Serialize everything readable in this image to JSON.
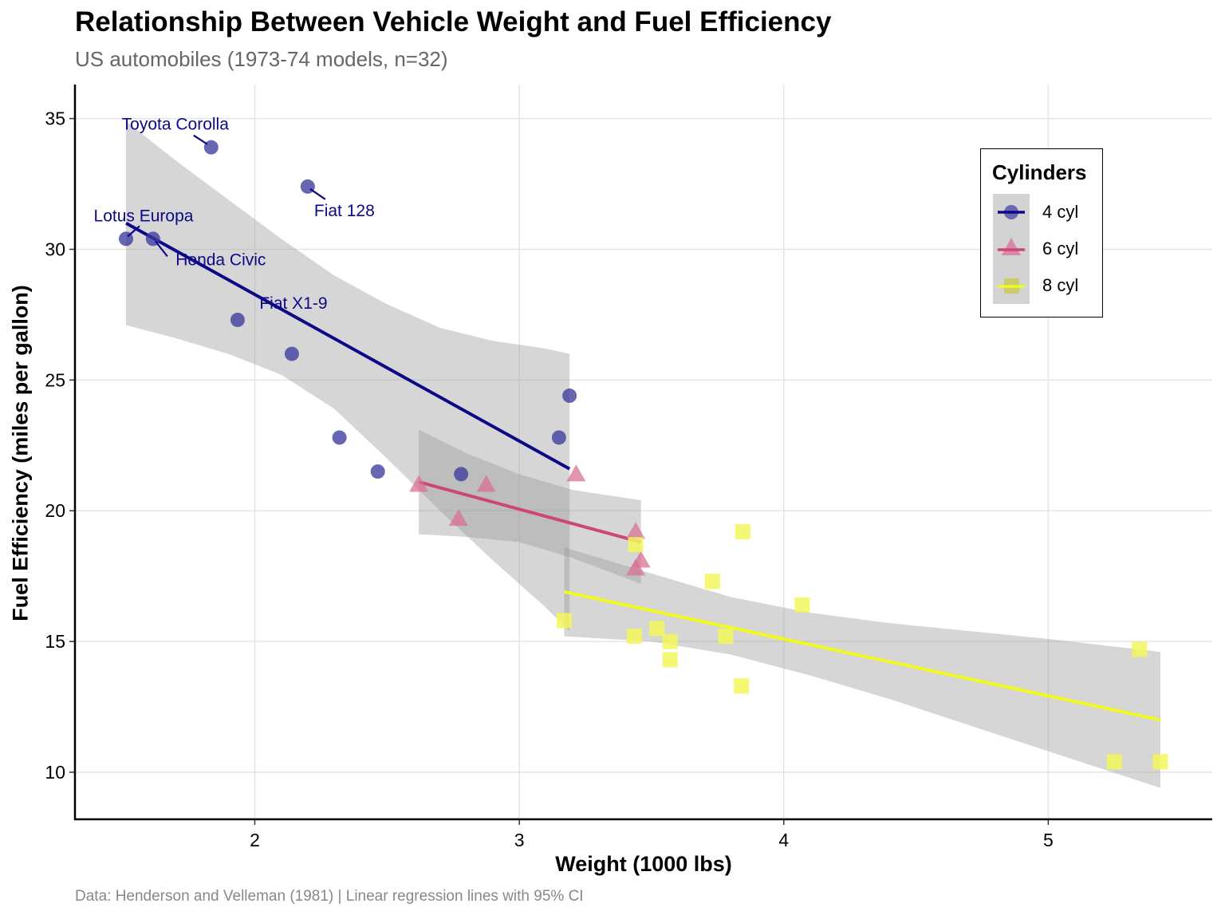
{
  "chart_data": {
    "type": "scatter",
    "title": "Relationship Between Vehicle Weight and Fuel Efficiency",
    "subtitle": "US automobiles (1973-74 models, n=32)",
    "caption": "Data: Henderson and Velleman (1981) | Linear regression lines with 95% CI",
    "xlabel": "Weight (1000 lbs)",
    "ylabel": "Fuel Efficiency (miles per gallon)",
    "xlim": [
      1.32,
      5.62
    ],
    "ylim": [
      8.2,
      36.3
    ],
    "x_ticks": [
      2,
      3,
      4,
      5
    ],
    "y_ticks": [
      10,
      15,
      20,
      25,
      30,
      35
    ],
    "grid": true,
    "legend": {
      "title": "Cylinders",
      "position": "top-right",
      "entries": [
        "4 cyl",
        "6 cyl",
        "8 cyl"
      ]
    },
    "series": [
      {
        "name": "4 cyl",
        "marker": "circle",
        "color": "#0d0887",
        "point_color": "#3b3b9e",
        "points": [
          {
            "x": 2.32,
            "y": 22.8
          },
          {
            "x": 3.19,
            "y": 24.4
          },
          {
            "x": 3.15,
            "y": 22.8
          },
          {
            "x": 2.2,
            "y": 32.4
          },
          {
            "x": 1.615,
            "y": 30.4
          },
          {
            "x": 1.835,
            "y": 33.9
          },
          {
            "x": 2.465,
            "y": 21.5
          },
          {
            "x": 1.935,
            "y": 27.3
          },
          {
            "x": 2.14,
            "y": 26.0
          },
          {
            "x": 1.513,
            "y": 30.4
          },
          {
            "x": 2.78,
            "y": 21.4
          }
        ],
        "fit": {
          "x": [
            1.513,
            3.19
          ],
          "y": [
            31.0,
            21.6
          ]
        },
        "ci": {
          "x": [
            1.513,
            1.7,
            1.9,
            2.1,
            2.3,
            2.5,
            2.7,
            2.9,
            3.1,
            3.19
          ],
          "upper": [
            34.9,
            33.4,
            31.9,
            30.4,
            29.0,
            27.9,
            27.0,
            26.5,
            26.2,
            26.0
          ],
          "lower": [
            27.1,
            26.6,
            26.0,
            25.2,
            23.9,
            22.0,
            20.0,
            18.1,
            16.3,
            15.4
          ]
        },
        "labels": [
          {
            "text": "Toyota Corolla",
            "x": 1.835,
            "y": 33.9
          },
          {
            "text": "Fiat 128",
            "x": 2.2,
            "y": 32.4
          },
          {
            "text": "Lotus Europa",
            "x": 1.513,
            "y": 30.4
          },
          {
            "text": "Honda Civic",
            "x": 1.615,
            "y": 30.4
          },
          {
            "text": "Fiat X1-9",
            "x": 1.935,
            "y": 27.3
          }
        ]
      },
      {
        "name": "6 cyl",
        "marker": "triangle",
        "color": "#cc4778",
        "point_color": "#d87096",
        "points": [
          {
            "x": 2.62,
            "y": 21.0
          },
          {
            "x": 2.875,
            "y": 21.0
          },
          {
            "x": 3.215,
            "y": 21.4
          },
          {
            "x": 3.46,
            "y": 18.1
          },
          {
            "x": 3.44,
            "y": 19.2
          },
          {
            "x": 3.44,
            "y": 17.8
          },
          {
            "x": 2.77,
            "y": 19.7
          }
        ],
        "fit": {
          "x": [
            2.62,
            3.46
          ],
          "y": [
            21.1,
            18.8
          ]
        },
        "ci": {
          "x": [
            2.62,
            2.8,
            3.0,
            3.2,
            3.46
          ],
          "upper": [
            23.1,
            22.2,
            21.4,
            20.8,
            20.4
          ],
          "lower": [
            19.1,
            19.0,
            18.8,
            18.2,
            17.2
          ]
        }
      },
      {
        "name": "8 cyl",
        "marker": "square",
        "color": "#f0f921",
        "point_color": "#f2f75a",
        "points": [
          {
            "x": 3.44,
            "y": 18.7
          },
          {
            "x": 3.57,
            "y": 14.3
          },
          {
            "x": 4.07,
            "y": 16.4
          },
          {
            "x": 3.73,
            "y": 17.3
          },
          {
            "x": 3.78,
            "y": 15.2
          },
          {
            "x": 5.25,
            "y": 10.4
          },
          {
            "x": 5.424,
            "y": 10.4
          },
          {
            "x": 5.345,
            "y": 14.7
          },
          {
            "x": 3.52,
            "y": 15.5
          },
          {
            "x": 3.435,
            "y": 15.2
          },
          {
            "x": 3.84,
            "y": 13.3
          },
          {
            "x": 3.845,
            "y": 19.2
          },
          {
            "x": 3.17,
            "y": 15.8
          },
          {
            "x": 3.57,
            "y": 15.0
          }
        ],
        "fit": {
          "x": [
            3.17,
            5.424
          ],
          "y": [
            16.9,
            12.0
          ]
        },
        "ci": {
          "x": [
            3.17,
            3.5,
            3.8,
            4.1,
            4.4,
            4.7,
            5.0,
            5.424
          ],
          "upper": [
            18.6,
            17.6,
            16.7,
            16.1,
            15.7,
            15.4,
            15.1,
            14.6
          ],
          "lower": [
            15.2,
            15.0,
            14.5,
            13.7,
            12.8,
            11.8,
            10.8,
            9.4
          ]
        }
      }
    ]
  }
}
